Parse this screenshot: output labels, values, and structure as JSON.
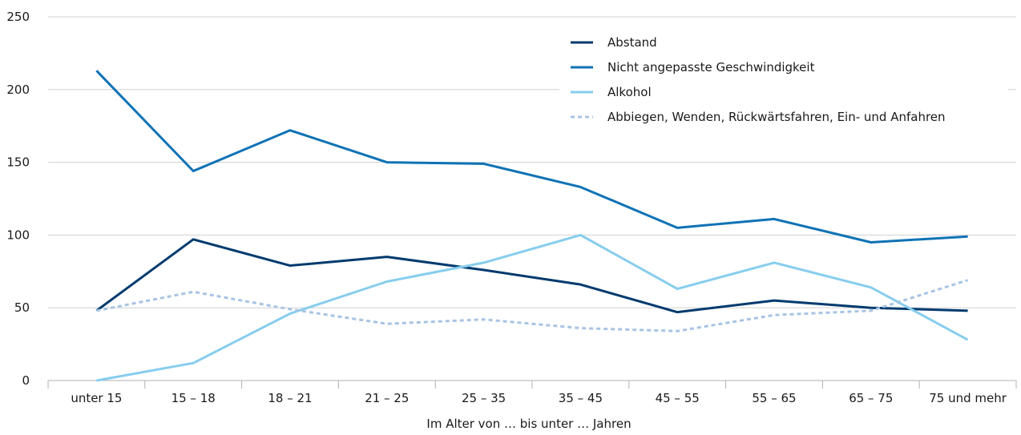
{
  "chart_data": {
    "type": "line",
    "title": "",
    "xlabel": "Im Alter von … bis unter … Jahren",
    "ylabel": "",
    "ylim": [
      0,
      250
    ],
    "yticks": [
      "0",
      "50",
      "100",
      "150",
      "200",
      "250"
    ],
    "categories": [
      "unter 15",
      "15 – 18",
      "18 – 21",
      "21 – 25",
      "25 – 35",
      "35 – 45",
      "45 – 55",
      "55 – 65",
      "65 – 75",
      "75 und mehr"
    ],
    "grid": true,
    "legend_position": "top-right",
    "series": [
      {
        "name": "Abstand",
        "color": "#003a6e",
        "dash": "solid",
        "values": [
          48,
          97,
          79,
          85,
          76,
          66,
          47,
          55,
          50,
          48
        ]
      },
      {
        "name": "Nicht angepasste Geschwindigkeit",
        "color": "#0f72b5",
        "dash": "solid",
        "values": [
          213,
          144,
          172,
          150,
          149,
          133,
          105,
          111,
          95,
          99
        ]
      },
      {
        "name": "Alkohol",
        "color": "#87cdee",
        "dash": "solid",
        "values": [
          0,
          12,
          46,
          68,
          81,
          100,
          63,
          81,
          64,
          28
        ]
      },
      {
        "name": "Abbiegen, Wenden, Rückwärtsfahren, Ein- und Anfahren",
        "color": "#a7c4e3",
        "dash": "dotted",
        "values": [
          48,
          61,
          49,
          39,
          42,
          36,
          34,
          45,
          48,
          69
        ]
      }
    ]
  }
}
